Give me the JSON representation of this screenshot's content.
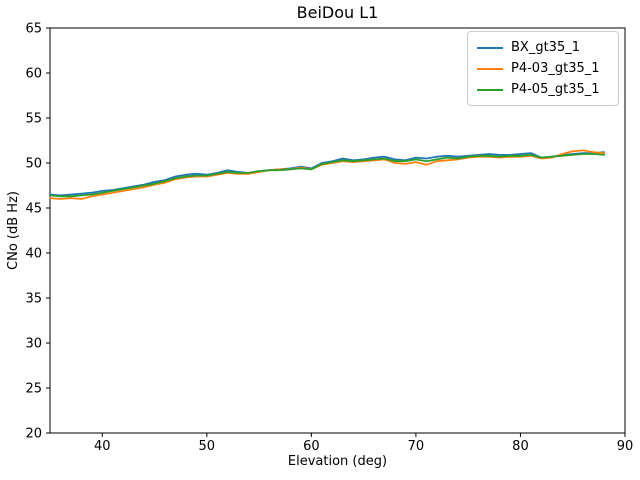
{
  "figure": {
    "background_color": "#ffffff",
    "frame_color": "#000000",
    "legend_border_color": "#cccccc"
  },
  "chart_data": {
    "type": "line",
    "title": "BeiDou L1",
    "xlabel": "Elevation (deg)",
    "ylabel": "CNo (dB Hz)",
    "xlim": [
      35,
      90
    ],
    "ylim": [
      20,
      65
    ],
    "xticks": [
      40,
      50,
      60,
      70,
      80,
      90
    ],
    "yticks": [
      20,
      25,
      30,
      35,
      40,
      45,
      50,
      55,
      60,
      65
    ],
    "grid": false,
    "legend_position": "upper right",
    "x": [
      35,
      36,
      37,
      38,
      39,
      40,
      41,
      42,
      43,
      44,
      45,
      46,
      47,
      48,
      49,
      50,
      51,
      52,
      53,
      54,
      55,
      56,
      57,
      58,
      59,
      60,
      61,
      62,
      63,
      64,
      65,
      66,
      67,
      68,
      69,
      70,
      71,
      72,
      73,
      74,
      75,
      76,
      77,
      78,
      79,
      80,
      81,
      82,
      83,
      84,
      85,
      86,
      87,
      88
    ],
    "series": [
      {
        "name": "BX_gt35_1",
        "color": "#1f77b4",
        "values": [
          46.5,
          46.4,
          46.5,
          46.6,
          46.7,
          46.9,
          47.0,
          47.2,
          47.4,
          47.6,
          47.9,
          48.1,
          48.5,
          48.7,
          48.8,
          48.7,
          48.9,
          49.2,
          49.0,
          48.9,
          49.1,
          49.2,
          49.3,
          49.4,
          49.6,
          49.4,
          50.0,
          50.2,
          50.5,
          50.3,
          50.4,
          50.6,
          50.7,
          50.4,
          50.3,
          50.6,
          50.5,
          50.7,
          50.8,
          50.7,
          50.8,
          50.9,
          51.0,
          50.9,
          50.9,
          51.0,
          51.1,
          50.6,
          50.7,
          50.9,
          51.0,
          51.1,
          51.1,
          51.2
        ]
      },
      {
        "name": "P4-03_gt35_1",
        "color": "#ff7f0e",
        "values": [
          46.1,
          46.0,
          46.1,
          46.0,
          46.3,
          46.5,
          46.7,
          46.9,
          47.1,
          47.3,
          47.6,
          47.8,
          48.2,
          48.4,
          48.5,
          48.5,
          48.7,
          48.9,
          48.8,
          48.8,
          49.0,
          49.2,
          49.3,
          49.3,
          49.5,
          49.3,
          49.8,
          50.0,
          50.2,
          50.1,
          50.2,
          50.3,
          50.4,
          50.0,
          49.9,
          50.1,
          49.8,
          50.2,
          50.3,
          50.4,
          50.6,
          50.7,
          50.7,
          50.6,
          50.7,
          50.7,
          50.8,
          50.5,
          50.6,
          51.0,
          51.3,
          51.4,
          51.2,
          51.1
        ]
      },
      {
        "name": "P4-05_gt35_1",
        "color": "#2ca02c",
        "values": [
          46.4,
          46.3,
          46.3,
          46.4,
          46.5,
          46.7,
          46.9,
          47.1,
          47.3,
          47.5,
          47.7,
          48.0,
          48.3,
          48.5,
          48.6,
          48.6,
          48.8,
          49.0,
          48.9,
          48.9,
          49.1,
          49.2,
          49.2,
          49.3,
          49.4,
          49.3,
          49.9,
          50.1,
          50.3,
          50.2,
          50.3,
          50.4,
          50.5,
          50.2,
          50.2,
          50.4,
          50.2,
          50.4,
          50.6,
          50.5,
          50.7,
          50.8,
          50.8,
          50.7,
          50.8,
          50.8,
          50.9,
          50.6,
          50.7,
          50.8,
          50.9,
          51.0,
          51.0,
          50.9
        ]
      }
    ]
  }
}
